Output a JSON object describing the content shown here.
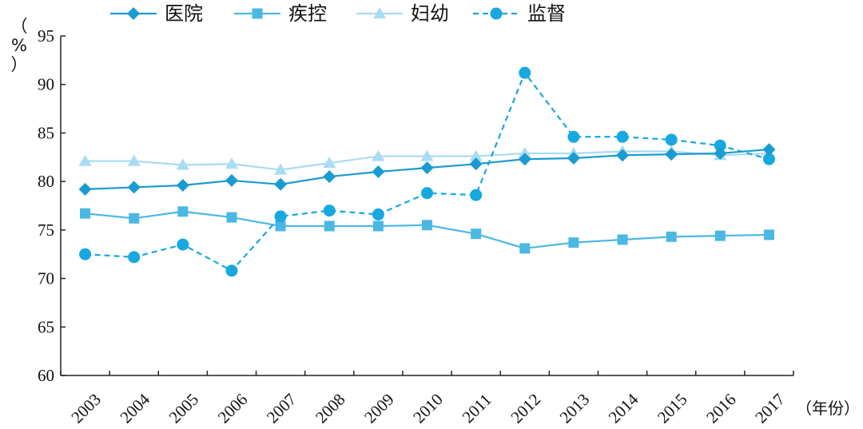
{
  "chart_data": {
    "type": "line",
    "xlabel": "（年份）",
    "ylabel": "（%）",
    "ylim": [
      60,
      95
    ],
    "yticks": [
      60,
      65,
      70,
      75,
      80,
      85,
      90,
      95
    ],
    "categories": [
      "2003",
      "2004",
      "2005",
      "2006",
      "2007",
      "2008",
      "2009",
      "2010",
      "2011",
      "2012",
      "2013",
      "2014",
      "2015",
      "2016",
      "2017"
    ],
    "legend_position": "top-left",
    "grid": false,
    "series": [
      {
        "name": "医院",
        "color": "#1a9bd1",
        "marker": "diamond",
        "dash": false,
        "values": [
          79.2,
          79.4,
          79.6,
          80.1,
          79.7,
          80.5,
          81.0,
          81.4,
          81.8,
          82.3,
          82.4,
          82.7,
          82.8,
          82.9,
          83.3
        ]
      },
      {
        "name": "疾控",
        "color": "#4ab8e3",
        "marker": "square",
        "dash": false,
        "values": [
          76.7,
          76.2,
          76.9,
          76.3,
          75.4,
          75.4,
          75.4,
          75.5,
          74.6,
          73.1,
          73.7,
          74.0,
          74.3,
          74.4,
          74.5
        ]
      },
      {
        "name": "妇幼",
        "color": "#a8dcf2",
        "marker": "triangle",
        "dash": false,
        "values": [
          82.1,
          82.1,
          81.7,
          81.8,
          81.2,
          81.9,
          82.6,
          82.6,
          82.6,
          82.9,
          82.9,
          83.1,
          83.1,
          82.7,
          82.9
        ]
      },
      {
        "name": "监督",
        "color": "#17a8e0",
        "marker": "circle",
        "dash": true,
        "values": [
          72.5,
          72.2,
          73.5,
          70.8,
          76.4,
          77.0,
          76.6,
          78.8,
          78.6,
          91.2,
          84.6,
          84.6,
          84.3,
          83.7,
          82.3
        ]
      }
    ]
  }
}
